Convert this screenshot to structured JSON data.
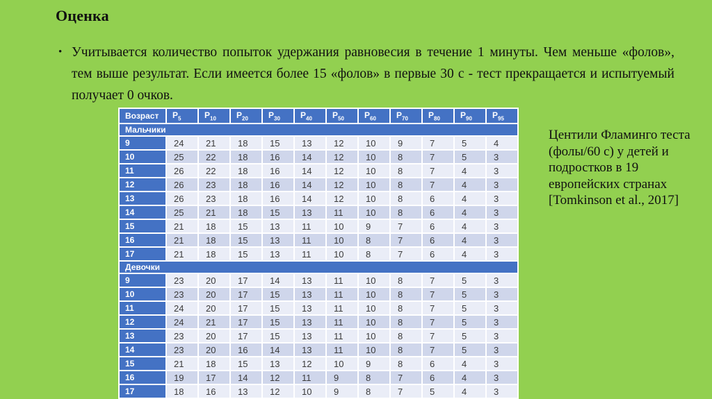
{
  "slide": {
    "title": "Оценка",
    "bullet_glyph": "•",
    "bullet_text": "Учитывается количество попыток удержания равновесия в течение 1 минуты. Чем меньше «фолов», тем выше результат. Если имеется более 15 «фолов» в первые 30 с - тест прекращается и испытуемый получает 0 очков.",
    "caption": "Центили Фламинго теста (фолы/60 с) у детей и подростков в 19 европейских странах [Tomkinson et al., 2017]"
  },
  "table": {
    "age_header": "Возраст",
    "percentile_prefix": "P",
    "percentile_subs": [
      "5",
      "10",
      "20",
      "30",
      "40",
      "50",
      "60",
      "70",
      "80",
      "90",
      "95"
    ],
    "sections": [
      {
        "label": "Мальчики",
        "rows": [
          {
            "age": "9",
            "values": [
              24,
              21,
              18,
              15,
              13,
              12,
              10,
              9,
              7,
              5,
              4
            ]
          },
          {
            "age": "10",
            "values": [
              25,
              22,
              18,
              16,
              14,
              12,
              10,
              8,
              7,
              5,
              3
            ]
          },
          {
            "age": "11",
            "values": [
              26,
              22,
              18,
              16,
              14,
              12,
              10,
              8,
              7,
              4,
              3
            ]
          },
          {
            "age": "12",
            "values": [
              26,
              23,
              18,
              16,
              14,
              12,
              10,
              8,
              7,
              4,
              3
            ]
          },
          {
            "age": "13",
            "values": [
              26,
              23,
              18,
              16,
              14,
              12,
              10,
              8,
              6,
              4,
              3
            ]
          },
          {
            "age": "14",
            "values": [
              25,
              21,
              18,
              15,
              13,
              11,
              10,
              8,
              6,
              4,
              3
            ]
          },
          {
            "age": "15",
            "values": [
              21,
              18,
              15,
              13,
              11,
              10,
              9,
              7,
              6,
              4,
              3
            ]
          },
          {
            "age": "16",
            "values": [
              21,
              18,
              15,
              13,
              11,
              10,
              8,
              7,
              6,
              4,
              3
            ]
          },
          {
            "age": "17",
            "values": [
              21,
              18,
              15,
              13,
              11,
              10,
              8,
              7,
              6,
              4,
              3
            ]
          }
        ]
      },
      {
        "label": "Девочки",
        "rows": [
          {
            "age": "9",
            "values": [
              23,
              20,
              17,
              14,
              13,
              11,
              10,
              8,
              7,
              5,
              3
            ]
          },
          {
            "age": "10",
            "values": [
              23,
              20,
              17,
              15,
              13,
              11,
              10,
              8,
              7,
              5,
              3
            ]
          },
          {
            "age": "11",
            "values": [
              24,
              20,
              17,
              15,
              13,
              11,
              10,
              8,
              7,
              5,
              3
            ]
          },
          {
            "age": "12",
            "values": [
              24,
              21,
              17,
              15,
              13,
              11,
              10,
              8,
              7,
              5,
              3
            ]
          },
          {
            "age": "13",
            "values": [
              23,
              20,
              17,
              15,
              13,
              11,
              10,
              8,
              7,
              5,
              3
            ]
          },
          {
            "age": "14",
            "values": [
              23,
              20,
              16,
              14,
              13,
              11,
              10,
              8,
              7,
              5,
              3
            ]
          },
          {
            "age": "15",
            "values": [
              21,
              18,
              15,
              13,
              12,
              10,
              9,
              8,
              6,
              4,
              3
            ]
          },
          {
            "age": "16",
            "values": [
              19,
              17,
              14,
              12,
              11,
              9,
              8,
              7,
              6,
              4,
              3
            ]
          },
          {
            "age": "17",
            "values": [
              18,
              16,
              13,
              12,
              10,
              9,
              8,
              7,
              5,
              4,
              3
            ]
          }
        ]
      }
    ]
  },
  "colors": {
    "background_green": "#92D050",
    "table_blue": "#4472C4",
    "row_light": "#EAEDF7",
    "row_band": "#CFD6EB",
    "grid_white": "#FFFFFF"
  }
}
